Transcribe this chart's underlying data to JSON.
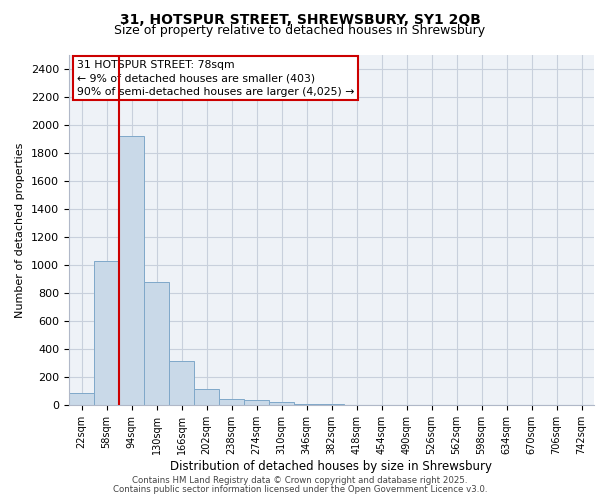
{
  "title_line1": "31, HOTSPUR STREET, SHREWSBURY, SY1 2QB",
  "title_line2": "Size of property relative to detached houses in Shrewsbury",
  "xlabel": "Distribution of detached houses by size in Shrewsbury",
  "ylabel": "Number of detached properties",
  "bin_labels": [
    "22sqm",
    "58sqm",
    "94sqm",
    "130sqm",
    "166sqm",
    "202sqm",
    "238sqm",
    "274sqm",
    "310sqm",
    "346sqm",
    "382sqm",
    "418sqm",
    "454sqm",
    "490sqm",
    "526sqm",
    "562sqm",
    "598sqm",
    "634sqm",
    "670sqm",
    "706sqm",
    "742sqm"
  ],
  "bar_values": [
    85,
    1030,
    1920,
    880,
    315,
    115,
    45,
    35,
    25,
    10,
    5,
    0,
    0,
    0,
    0,
    0,
    0,
    0,
    0,
    0,
    0
  ],
  "bar_color": "#c9d9e8",
  "bar_edge_color": "#7fa8c9",
  "vline_x": 1.5,
  "marker_label_line1": "31 HOTSPUR STREET: 78sqm",
  "marker_label_line2": "← 9% of detached houses are smaller (403)",
  "marker_label_line3": "90% of semi-detached houses are larger (4,025) →",
  "vline_color": "#cc0000",
  "ylim": [
    0,
    2500
  ],
  "yticks": [
    0,
    200,
    400,
    600,
    800,
    1000,
    1200,
    1400,
    1600,
    1800,
    2000,
    2200,
    2400
  ],
  "annotation_box_color": "#cc0000",
  "footer_line1": "Contains HM Land Registry data © Crown copyright and database right 2025.",
  "footer_line2": "Contains public sector information licensed under the Open Government Licence v3.0.",
  "bg_color": "#eef2f7",
  "grid_color": "#c8d0dc",
  "title1_fontsize": 10,
  "title2_fontsize": 9,
  "ylabel_fontsize": 8,
  "xlabel_fontsize": 8.5,
  "ytick_fontsize": 8,
  "xtick_fontsize": 7,
  "footer_fontsize": 6.2,
  "annot_fontsize": 7.8
}
